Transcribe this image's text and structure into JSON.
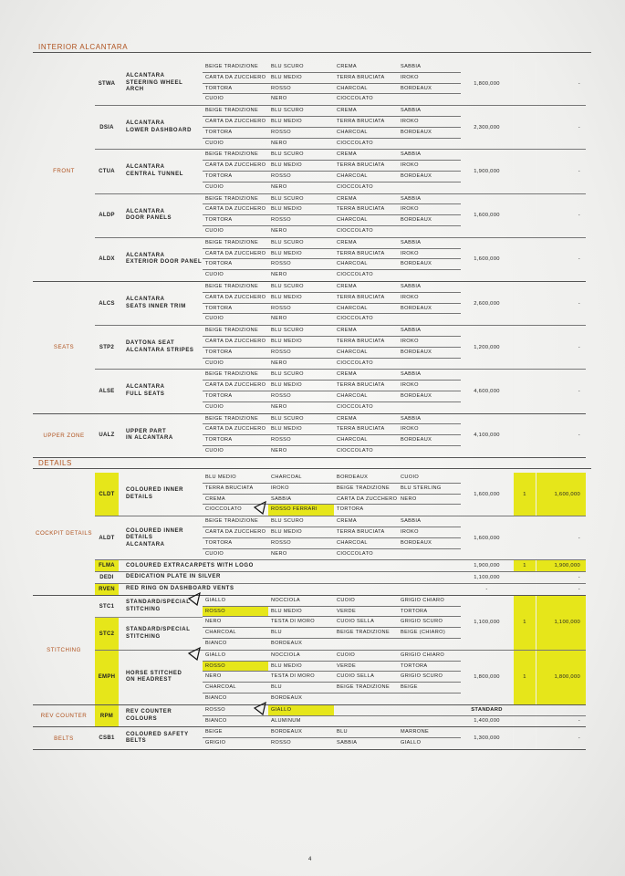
{
  "page_number": "4",
  "accent_color": "#b0521e",
  "highlight_color": "#e6e61a",
  "sections": [
    {
      "title": "INTERIOR ALCANTARA",
      "groups": [
        {
          "label": "FRONT",
          "items": [
            {
              "entries": [
                {
                  "code": "STWA",
                  "desc": "ALCANTARA\nSTEERING WHEEL ARCH",
                  "rows": 4
                }
              ],
              "colors": [
                [
                  "BEIGE TRADIZIONE",
                  "BLU SCURO",
                  "CREMA",
                  "SABBIA"
                ],
                [
                  "CARTA DA ZUCCHERO",
                  "BLU MEDIO",
                  "TERRA BRUCIATA",
                  "IROKO"
                ],
                [
                  "TORTORA",
                  "ROSSO",
                  "CHARCOAL",
                  "BORDEAUX"
                ],
                [
                  "CUOIO",
                  "NERO",
                  "CIOCCOLATO",
                  ""
                ]
              ],
              "price": "1,800,000",
              "qty": "",
              "total": "-"
            },
            {
              "entries": [
                {
                  "code": "DSIA",
                  "desc": "ALCANTARA\nLOWER DASHBOARD",
                  "rows": 4
                }
              ],
              "colors": [
                [
                  "BEIGE TRADIZIONE",
                  "BLU SCURO",
                  "CREMA",
                  "SABBIA"
                ],
                [
                  "CARTA DA ZUCCHERO",
                  "BLU MEDIO",
                  "TERRA BRUCIATA",
                  "IROKO"
                ],
                [
                  "TORTORA",
                  "ROSSO",
                  "CHARCOAL",
                  "BORDEAUX"
                ],
                [
                  "CUOIO",
                  "NERO",
                  "CIOCCOLATO",
                  ""
                ]
              ],
              "price": "2,300,000",
              "qty": "",
              "total": "-"
            },
            {
              "entries": [
                {
                  "code": "CTUA",
                  "desc": "ALCANTARA\nCENTRAL TUNNEL",
                  "rows": 4
                }
              ],
              "colors": [
                [
                  "BEIGE TRADIZIONE",
                  "BLU SCURO",
                  "CREMA",
                  "SABBIA"
                ],
                [
                  "CARTA DA ZUCCHERO",
                  "BLU MEDIO",
                  "TERRA BRUCIATA",
                  "IROKO"
                ],
                [
                  "TORTORA",
                  "ROSSO",
                  "CHARCOAL",
                  "BORDEAUX"
                ],
                [
                  "CUOIO",
                  "NERO",
                  "CIOCCOLATO",
                  ""
                ]
              ],
              "price": "1,900,000",
              "qty": "",
              "total": "-"
            },
            {
              "entries": [
                {
                  "code": "ALDP",
                  "desc": "ALCANTARA\nDOOR PANELS",
                  "rows": 4
                }
              ],
              "colors": [
                [
                  "BEIGE TRADIZIONE",
                  "BLU SCURO",
                  "CREMA",
                  "SABBIA"
                ],
                [
                  "CARTA DA ZUCCHERO",
                  "BLU MEDIO",
                  "TERRA BRUCIATA",
                  "IROKO"
                ],
                [
                  "TORTORA",
                  "ROSSO",
                  "CHARCOAL",
                  "BORDEAUX"
                ],
                [
                  "CUOIO",
                  "NERO",
                  "CIOCCOLATO",
                  ""
                ]
              ],
              "price": "1,600,000",
              "qty": "",
              "total": "-"
            },
            {
              "entries": [
                {
                  "code": "ALDX",
                  "desc": "ALCANTARA\nEXTERIOR DOOR PANEL",
                  "rows": 4
                }
              ],
              "colors": [
                [
                  "BEIGE TRADIZIONE",
                  "BLU SCURO",
                  "CREMA",
                  "SABBIA"
                ],
                [
                  "CARTA DA ZUCCHERO",
                  "BLU MEDIO",
                  "TERRA BRUCIATA",
                  "IROKO"
                ],
                [
                  "TORTORA",
                  "ROSSO",
                  "CHARCOAL",
                  "BORDEAUX"
                ],
                [
                  "CUOIO",
                  "NERO",
                  "CIOCCOLATO",
                  ""
                ]
              ],
              "price": "1,600,000",
              "qty": "",
              "total": "-"
            }
          ]
        },
        {
          "label": "SEATS",
          "items": [
            {
              "entries": [
                {
                  "code": "ALCS",
                  "desc": "ALCANTARA\nSEATS INNER TRIM",
                  "rows": 4
                }
              ],
              "colors": [
                [
                  "BEIGE TRADIZIONE",
                  "BLU SCURO",
                  "CREMA",
                  "SABBIA"
                ],
                [
                  "CARTA DA ZUCCHERO",
                  "BLU MEDIO",
                  "TERRA BRUCIATA",
                  "IROKO"
                ],
                [
                  "TORTORA",
                  "ROSSO",
                  "CHARCOAL",
                  "BORDEAUX"
                ],
                [
                  "CUOIO",
                  "NERO",
                  "CIOCCOLATO",
                  ""
                ]
              ],
              "price": "2,600,000",
              "qty": "",
              "total": "-"
            },
            {
              "entries": [
                {
                  "code": "STP2",
                  "desc": "DAYTONA SEAT\nALCANTARA STRIPES",
                  "rows": 4
                }
              ],
              "colors": [
                [
                  "BEIGE TRADIZIONE",
                  "BLU SCURO",
                  "CREMA",
                  "SABBIA"
                ],
                [
                  "CARTA DA ZUCCHERO",
                  "BLU MEDIO",
                  "TERRA BRUCIATA",
                  "IROKO"
                ],
                [
                  "TORTORA",
                  "ROSSO",
                  "CHARCOAL",
                  "BORDEAUX"
                ],
                [
                  "CUOIO",
                  "NERO",
                  "CIOCCOLATO",
                  ""
                ]
              ],
              "price": "1,200,000",
              "qty": "",
              "total": "-"
            },
            {
              "entries": [
                {
                  "code": "ALSE",
                  "desc": "ALCANTARA\nFULL SEATS",
                  "rows": 4
                }
              ],
              "colors": [
                [
                  "BEIGE TRADIZIONE",
                  "BLU SCURO",
                  "CREMA",
                  "SABBIA"
                ],
                [
                  "CARTA DA ZUCCHERO",
                  "BLU MEDIO",
                  "TERRA BRUCIATA",
                  "IROKO"
                ],
                [
                  "TORTORA",
                  "ROSSO",
                  "CHARCOAL",
                  "BORDEAUX"
                ],
                [
                  "CUOIO",
                  "NERO",
                  "CIOCCOLATO",
                  ""
                ]
              ],
              "price": "4,600,000",
              "qty": "",
              "total": "-"
            }
          ]
        },
        {
          "label": "UPPER ZONE",
          "items": [
            {
              "entries": [
                {
                  "code": "UALZ",
                  "desc": "UPPER PART\nIN ALCANTARA",
                  "rows": 4
                }
              ],
              "colors": [
                [
                  "BEIGE TRADIZIONE",
                  "BLU SCURO",
                  "CREMA",
                  "SABBIA"
                ],
                [
                  "CARTA DA ZUCCHERO",
                  "BLU MEDIO",
                  "TERRA BRUCIATA",
                  "IROKO"
                ],
                [
                  "TORTORA",
                  "ROSSO",
                  "CHARCOAL",
                  "BORDEAUX"
                ],
                [
                  "CUOIO",
                  "NERO",
                  "CIOCCOLATO",
                  ""
                ]
              ],
              "price": "4,100,000",
              "qty": "",
              "total": "-"
            }
          ]
        }
      ]
    },
    {
      "title": "DETAILS",
      "groups": [
        {
          "label": "COCKPIT DETAILS",
          "items": [
            {
              "entries": [
                {
                  "code": "CLDT",
                  "desc": "COLOURED INNER DETAILS",
                  "rows": 4,
                  "highlight": true
                }
              ],
              "colors": [
                [
                  "BLU MEDIO",
                  "CHARCOAL",
                  "BORDEAUX",
                  "CUOIO"
                ],
                [
                  "TERRA BRUCIATA",
                  "IROKO",
                  "BEIGE TRADIZIONE",
                  "BLU STERLING"
                ],
                [
                  "CREMA",
                  "SABBIA",
                  "CARTA DA ZUCCHERO",
                  "NERO"
                ],
                [
                  "CIOCCOLATO",
                  "ROSSO FERRARI",
                  "TORTORA",
                  ""
                ]
              ],
              "highlight_cells": [
                [
                  3,
                  1
                ]
              ],
              "marked_cells": [
                [
                  3,
                  1
                ]
              ],
              "price": "1,600,000",
              "qty": "1",
              "total": "1,600,000",
              "highlight_price": true
            },
            {
              "entries": [
                {
                  "code": "ALDT",
                  "desc": "COLOURED INNER DETAILS\nALCANTARA",
                  "rows": 4
                }
              ],
              "colors": [
                [
                  "BEIGE TRADIZIONE",
                  "BLU SCURO",
                  "CREMA",
                  "SABBIA"
                ],
                [
                  "CARTA DA ZUCCHERO",
                  "BLU MEDIO",
                  "TERRA BRUCIATA",
                  "IROKO"
                ],
                [
                  "TORTORA",
                  "ROSSO",
                  "CHARCOAL",
                  "BORDEAUX"
                ],
                [
                  "CUOIO",
                  "NERO",
                  "CIOCCOLATO",
                  ""
                ]
              ],
              "price": "1,600,000",
              "qty": "",
              "total": "-"
            },
            {
              "entries": [
                {
                  "code": "FLMA",
                  "desc": "COLOURED EXTRACARPETS WITH LOGO",
                  "rows": 1,
                  "highlight": true
                }
              ],
              "colors": [],
              "price": "1,900,000",
              "qty": "1",
              "total": "1,900,000",
              "highlight_price": true
            },
            {
              "entries": [
                {
                  "code": "DEDI",
                  "desc": "DEDICATION PLATE IN SILVER",
                  "rows": 1
                }
              ],
              "colors": [],
              "price": "1,100,000",
              "qty": "",
              "total": "-"
            },
            {
              "entries": [
                {
                  "code": "RVEN",
                  "desc": "RED RING ON DASHBOARD VENTS",
                  "rows": 1,
                  "highlight": true
                }
              ],
              "colors": [],
              "price": "-",
              "qty": "",
              "total": "-"
            }
          ]
        },
        {
          "label": "STITCHING",
          "items": [
            {
              "entries": [
                {
                  "code": "STC1",
                  "desc": "STANDARD/SPECIAL\nSTITCHING",
                  "rows": 2
                },
                {
                  "code": "STC2",
                  "desc": "STANDARD/SPECIAL\nSTITCHING",
                  "rows": 3,
                  "highlight": true
                }
              ],
              "colors": [
                [
                  "GIALLO",
                  "NOCCIOLA",
                  "CUOIO",
                  "GRIGIO CHIARO"
                ],
                [
                  "ROSSO",
                  "BLU MEDIO",
                  "VERDE",
                  "TORTORA"
                ],
                [
                  "NERO",
                  "TESTA DI MORO",
                  "CUOIO SELLA",
                  "GRIGIO SCURO"
                ],
                [
                  "CHARCOAL",
                  "BLU",
                  "BEIGE TRADIZIONE",
                  "BEIGE (CHIARO)"
                ],
                [
                  "BIANCO",
                  "BORDEAUX",
                  "",
                  ""
                ]
              ],
              "highlight_cells": [
                [
                  1,
                  0
                ]
              ],
              "marked_cells": [
                [
                  0,
                  0
                ]
              ],
              "price": "1,100,000",
              "qty": "1",
              "total": "1,100,000",
              "highlight_price": true
            },
            {
              "entries": [
                {
                  "code": "EMPH",
                  "desc": "HORSE STITCHED\nON HEADREST",
                  "rows": 5,
                  "highlight": true
                }
              ],
              "colors": [
                [
                  "GIALLO",
                  "NOCCIOLA",
                  "CUOIO",
                  "GRIGIO CHIARO"
                ],
                [
                  "ROSSO",
                  "BLU MEDIO",
                  "VERDE",
                  "TORTORA"
                ],
                [
                  "NERO",
                  "TESTA DI MORO",
                  "CUOIO SELLA",
                  "GRIGIO SCURO"
                ],
                [
                  "CHARCOAL",
                  "BLU",
                  "BEIGE TRADIZIONE",
                  "BEIGE"
                ],
                [
                  "BIANCO",
                  "BORDEAUX",
                  "",
                  ""
                ]
              ],
              "highlight_cells": [
                [
                  1,
                  0
                ]
              ],
              "marked_cells": [
                [
                  0,
                  0
                ]
              ],
              "price": "1,800,000",
              "qty": "1",
              "total": "1,800,000",
              "highlight_price": true
            }
          ]
        },
        {
          "label": "REV COUNTER",
          "items": [
            {
              "entries": [
                {
                  "code": "RPM",
                  "desc": "REV COUNTER COLOURS",
                  "rows": 2,
                  "highlight": true
                }
              ],
              "colors": [
                [
                  "ROSSO",
                  "GIALLO",
                  "",
                  ""
                ],
                [
                  "BIANCO",
                  "ALUMINUM",
                  "",
                  ""
                ]
              ],
              "highlight_cells": [
                [
                  0,
                  1
                ]
              ],
              "marked_cells": [
                [
                  0,
                  1
                ]
              ],
              "price_rows": [
                {
                  "price": "STANDARD",
                  "qty": "",
                  "total": ""
                },
                {
                  "price": "1,400,000",
                  "qty": "",
                  "total": "-"
                }
              ]
            }
          ]
        },
        {
          "label": "BELTS",
          "items": [
            {
              "entries": [
                {
                  "code": "CSB1",
                  "desc": "COLOURED SAFETY BELTS",
                  "rows": 2
                }
              ],
              "colors": [
                [
                  "BEIGE",
                  "BORDEAUX",
                  "BLU",
                  "MARRONE"
                ],
                [
                  "GRIGIO",
                  "ROSSO",
                  "SABBIA",
                  "GIALLO"
                ]
              ],
              "price": "1,300,000",
              "qty": "",
              "total": "-"
            }
          ]
        }
      ]
    }
  ]
}
